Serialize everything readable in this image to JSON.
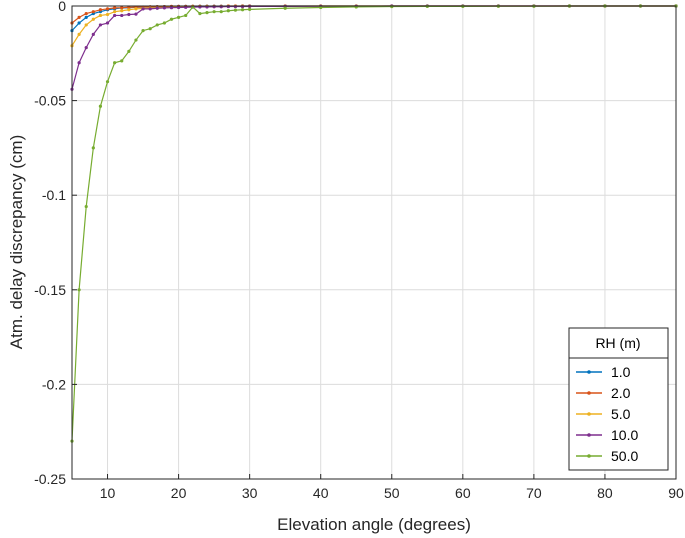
{
  "chart_data": {
    "type": "line",
    "title": "",
    "xlabel": "Elevation angle (degrees)",
    "ylabel": "Atm. delay discrepancy (cm)",
    "xlim": [
      5,
      90
    ],
    "ylim": [
      -0.25,
      0
    ],
    "xticks": [
      10,
      20,
      30,
      40,
      50,
      60,
      70,
      80,
      90
    ],
    "xtick_labels": [
      "10",
      "20",
      "30",
      "40",
      "50",
      "60",
      "70",
      "80",
      "90"
    ],
    "yticks": [
      0,
      -0.05,
      -0.1,
      -0.15,
      -0.2,
      -0.25
    ],
    "ytick_labels": [
      "0",
      "-0.05",
      "-0.1",
      "-0.15",
      "-0.2",
      "-0.25"
    ],
    "grid": true,
    "legend": {
      "title": "RH (m)",
      "placement": "bottom-right"
    },
    "x": [
      5,
      6,
      7,
      8,
      9,
      10,
      11,
      12,
      13,
      14,
      15,
      16,
      17,
      18,
      19,
      20,
      21,
      22,
      23,
      24,
      25,
      26,
      27,
      28,
      29,
      30,
      35,
      40,
      45,
      50,
      55,
      60,
      65,
      70,
      75,
      80,
      85,
      90
    ],
    "series": [
      {
        "name": "1.0",
        "color": "#0072BD",
        "values": [
          -0.013,
          -0.009,
          -0.006,
          -0.004,
          -0.003,
          -0.002,
          -0.0015,
          -0.001,
          -0.0009,
          -0.0007,
          -0.0006,
          -0.0005,
          -0.0004,
          -0.0003,
          -0.0003,
          -0.0002,
          -0.0002,
          -0.0002,
          -0.0001,
          -0.0001,
          -0.0001,
          -0.0001,
          -0.0001,
          -0.0001,
          0,
          0,
          0,
          0,
          0,
          0,
          0,
          0,
          0,
          0,
          0,
          0,
          0,
          0
        ]
      },
      {
        "name": "2.0",
        "color": "#D95319",
        "values": [
          -0.009,
          -0.006,
          -0.004,
          -0.003,
          -0.002,
          -0.0015,
          -0.001,
          -0.0009,
          -0.0007,
          -0.0006,
          -0.0005,
          -0.0004,
          -0.0003,
          -0.0003,
          -0.0002,
          -0.0002,
          -0.0002,
          -0.0001,
          -0.0001,
          -0.0001,
          -0.0001,
          -0.0001,
          0,
          0,
          0,
          0,
          0,
          0,
          0,
          0,
          0,
          0,
          0,
          0,
          0,
          0,
          0,
          0
        ]
      },
      {
        "name": "5.0",
        "color": "#EDB120",
        "values": [
          -0.021,
          -0.015,
          -0.01,
          -0.007,
          -0.005,
          -0.0045,
          -0.003,
          -0.0025,
          -0.002,
          -0.0015,
          -0.0013,
          -0.0011,
          -0.0009,
          -0.0008,
          -0.0007,
          -0.0006,
          -0.0005,
          -0.0004,
          -0.0004,
          -0.0003,
          -0.0003,
          -0.0003,
          -0.0002,
          -0.0002,
          -0.0002,
          -0.0002,
          -0.0001,
          0,
          0,
          0,
          0,
          0,
          0,
          0,
          0,
          0,
          0,
          0
        ]
      },
      {
        "name": "10.0",
        "color": "#7E2F8E",
        "values": [
          -0.044,
          -0.03,
          -0.022,
          -0.015,
          -0.01,
          -0.009,
          -0.005,
          -0.005,
          -0.0045,
          -0.0043,
          -0.0015,
          -0.0015,
          -0.0012,
          -0.001,
          -0.0009,
          -0.0008,
          -0.0007,
          -0.0006,
          -0.0005,
          -0.0005,
          -0.0004,
          -0.0004,
          -0.0003,
          -0.0003,
          -0.0003,
          -0.0002,
          -0.0002,
          -0.0001,
          -0.0001,
          0,
          0,
          0,
          0,
          0,
          0,
          0,
          0,
          0
        ]
      },
      {
        "name": "50.0",
        "color": "#77AC30",
        "values": [
          -0.23,
          -0.15,
          -0.106,
          -0.075,
          -0.053,
          -0.04,
          -0.03,
          -0.029,
          -0.024,
          -0.018,
          -0.013,
          -0.012,
          -0.01,
          -0.009,
          -0.007,
          -0.006,
          -0.005,
          -0.0005,
          -0.004,
          -0.0035,
          -0.003,
          -0.003,
          -0.0025,
          -0.0022,
          -0.002,
          -0.0018,
          -0.0012,
          -0.0008,
          -0.0005,
          -0.0003,
          -0.0002,
          -0.0002,
          -0.0001,
          -0.0001,
          0,
          0,
          0,
          0
        ]
      }
    ]
  }
}
